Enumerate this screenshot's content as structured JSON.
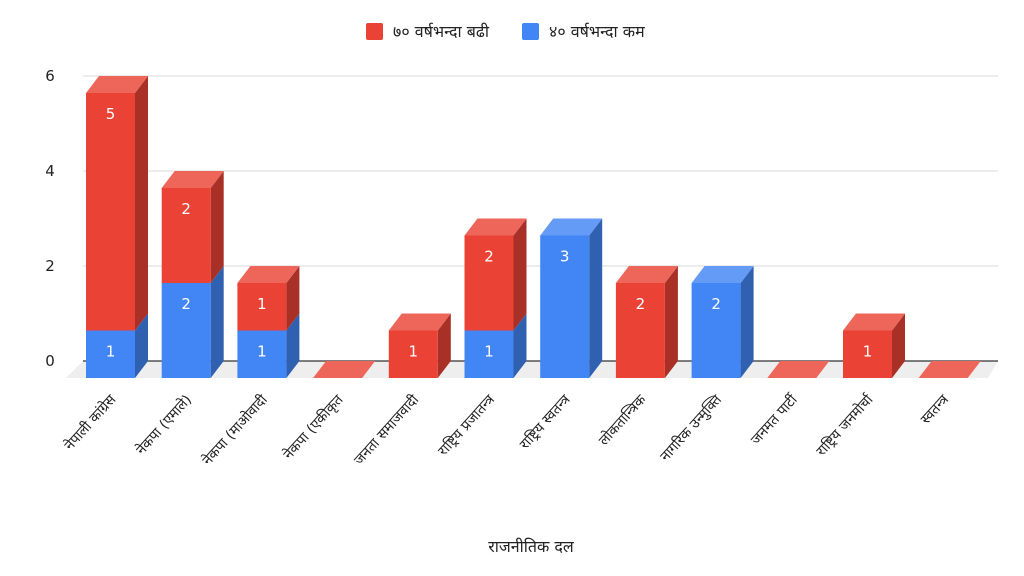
{
  "chart_data": {
    "type": "bar",
    "stacked": true,
    "three_d": true,
    "categories": [
      "नेपाली कांग्रेस",
      "नेकपा (एमाले)",
      "नेकपा (माओवादी",
      "नेकपा (एकीकृत",
      "जनता समाजवादी",
      "राष्ट्रिय प्रजातन्त्र",
      "राष्ट्रिय स्वतन्त्र",
      "लोकतान्त्रिक",
      "नागरिक उन्मुक्ति",
      "जनमत पार्टी",
      "राष्ट्रिय जनमोर्चा",
      "स्वतन्त्र"
    ],
    "series": [
      {
        "name": "४० वर्षभन्दा कम",
        "color": "#4285f4",
        "values": [
          1,
          2,
          1,
          0,
          0,
          1,
          3,
          0,
          2,
          0,
          0,
          0
        ]
      },
      {
        "name": "७० वर्षभन्दा बढी",
        "color": "#ea4335",
        "values": [
          5,
          2,
          1,
          0,
          1,
          2,
          0,
          2,
          0,
          0,
          1,
          0
        ]
      }
    ],
    "legend_order": [
      "७० वर्षभन्दा बढी",
      "४० वर्षभन्दा कम"
    ],
    "legend_position": "top",
    "xlabel": "राजनीतिक दल",
    "ylabel": "",
    "ylim": [
      0,
      6
    ],
    "yticks": [
      0,
      2,
      4,
      6
    ],
    "grid": true
  }
}
